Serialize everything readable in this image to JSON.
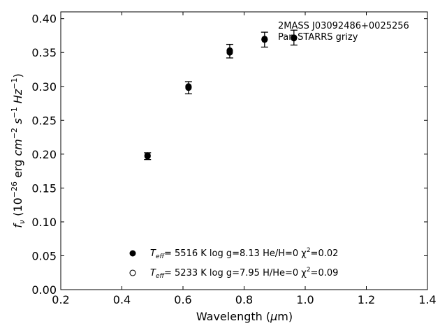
{
  "chart_data": {
    "type": "scatter",
    "xlabel": "Wavelength (μm)",
    "ylabel": "f_ν (10^−26 erg cm^−2 s^−1 Hz^−1)",
    "xlim": [
      0.2,
      1.4
    ],
    "ylim": [
      0.0,
      0.41
    ],
    "x_ticks": [
      "0.2",
      "0.4",
      "0.6",
      "0.8",
      "1.0",
      "1.2",
      "1.4"
    ],
    "y_ticks": [
      "0.00",
      "0.05",
      "0.10",
      "0.15",
      "0.20",
      "0.25",
      "0.30",
      "0.35",
      "0.40"
    ],
    "annotation": [
      "2MASS J03092486+0025256",
      "Pan-STARRS grizy"
    ],
    "observed": {
      "marker": "errorbar-dot",
      "points": [
        {
          "x": 0.484,
          "y": 0.197,
          "err": 0.005
        },
        {
          "x": 0.618,
          "y": 0.298,
          "err": 0.009
        },
        {
          "x": 0.753,
          "y": 0.352,
          "err": 0.01
        },
        {
          "x": 0.867,
          "y": 0.369,
          "err": 0.011
        },
        {
          "x": 0.963,
          "y": 0.372,
          "err": 0.011
        }
      ]
    },
    "series": [
      {
        "marker": "filled-circle",
        "values": [
          {
            "x": 0.484,
            "y": 0.197
          },
          {
            "x": 0.618,
            "y": 0.299
          },
          {
            "x": 0.753,
            "y": 0.35
          },
          {
            "x": 0.867,
            "y": 0.369
          },
          {
            "x": 0.963,
            "y": 0.371
          }
        ]
      },
      {
        "marker": "open-circle",
        "values": [
          {
            "x": 0.484,
            "y": 0.198
          },
          {
            "x": 0.618,
            "y": 0.3
          },
          {
            "x": 0.753,
            "y": 0.353
          },
          {
            "x": 0.867,
            "y": 0.37
          },
          {
            "x": 0.963,
            "y": 0.372
          }
        ]
      }
    ],
    "legend": {
      "placement": "lower-center",
      "entries": [
        {
          "teff_label": "T",
          "teff_sub": "eff",
          "text": "=  5516 K  log g=8.13  He/H=0  χ",
          "chi_sup": "2",
          "chi_val": "=0.02",
          "marker": "filled-circle"
        },
        {
          "teff_label": "T",
          "teff_sub": "eff",
          "text": "=  5233 K  log g=7.95  H/He=0  χ",
          "chi_sup": "2",
          "chi_val": "=0.09",
          "marker": "open-circle"
        }
      ]
    }
  }
}
